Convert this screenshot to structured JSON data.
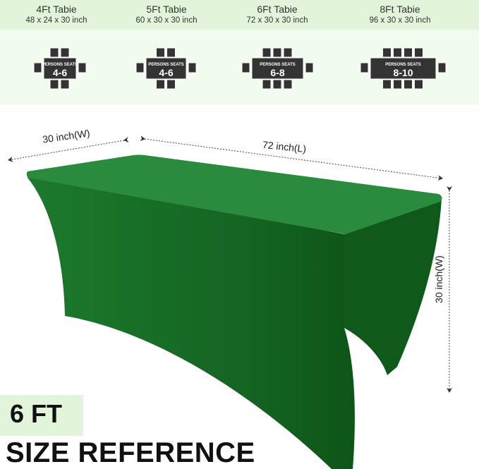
{
  "tables": [
    {
      "name": "4Ft Tabie",
      "dims": "48 x 24 x 30 inch",
      "seats_label": "PERSONS SEATS",
      "seats": "4-6",
      "chairs_per_side": 2
    },
    {
      "name": "5Ft Tabie",
      "dims": "60 x 30 x 30 inch",
      "seats_label": "PERSONS SEATS",
      "seats": "4-6",
      "chairs_per_side": 2
    },
    {
      "name": "6Ft Tabie",
      "dims": "72 x 30 x 30 inch",
      "seats_label": "PERSONS SEATS",
      "seats": "6-8",
      "chairs_per_side": 3
    },
    {
      "name": "8Ft Tabie",
      "dims": "96 x 30 x 30 inch",
      "seats_label": "PERSONS SEATS",
      "seats": "8-10",
      "chairs_per_side": 4
    }
  ],
  "dimensions": {
    "width_top": "30 inch(W)",
    "length": "72 inch(L)",
    "height": "30 inch(W)"
  },
  "badge": "6 FT",
  "headline": "SIZE REFERENCE",
  "colors": {
    "cover_green": "#1e7a2e",
    "band_light": "#e2f5da",
    "band_lighter": "#f1fbee",
    "diagram_dark": "#333333"
  }
}
